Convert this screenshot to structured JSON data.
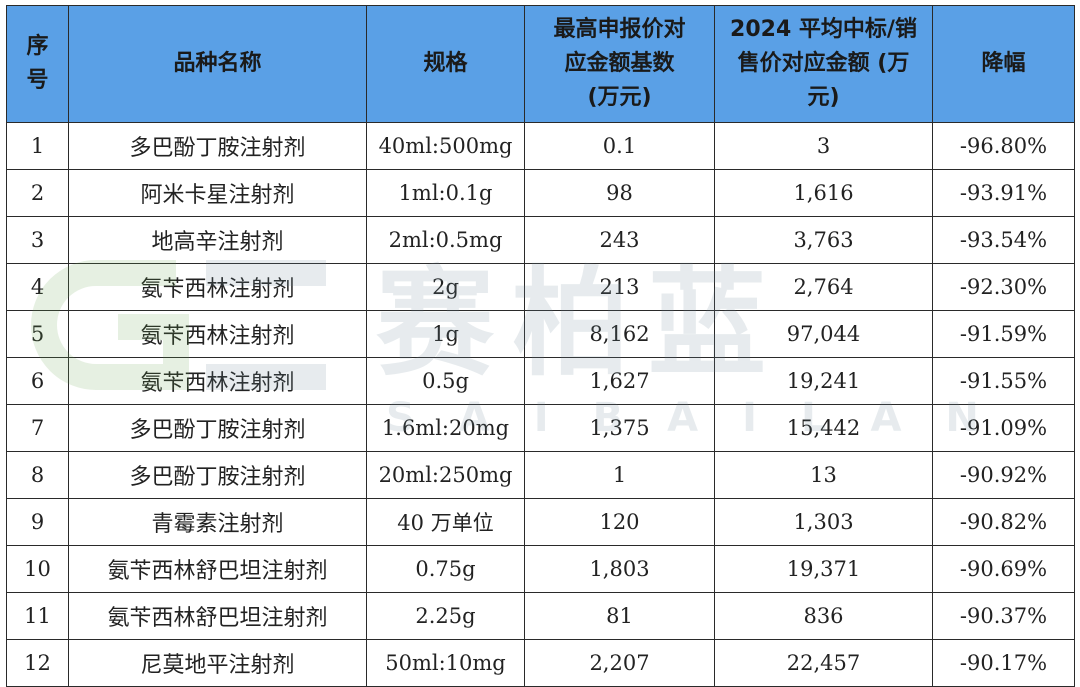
{
  "table": {
    "headers": [
      "序\n号",
      "品种名称",
      "规格",
      "最高申报价对\n应金额基数\n(万元)",
      "2024 平均中标/销\n售价对应金额 (万\n元)",
      "降幅"
    ],
    "rows": [
      [
        "1",
        "多巴酚丁胺注射剂",
        "40ml:500mg",
        "0.1",
        "3",
        "-96.80%"
      ],
      [
        "2",
        "阿米卡星注射剂",
        "1ml:0.1g",
        "98",
        "1,616",
        "-93.91%"
      ],
      [
        "3",
        "地高辛注射剂",
        "2ml:0.5mg",
        "243",
        "3,763",
        "-93.54%"
      ],
      [
        "4",
        "氨苄西林注射剂",
        "2g",
        "213",
        "2,764",
        "-92.30%"
      ],
      [
        "5",
        "氨苄西林注射剂",
        "1g",
        "8,162",
        "97,044",
        "-91.59%"
      ],
      [
        "6",
        "氨苄西林注射剂",
        "0.5g",
        "1,627",
        "19,241",
        "-91.55%"
      ],
      [
        "7",
        "多巴酚丁胺注射剂",
        "1.6ml:20mg",
        "1,375",
        "15,442",
        "-91.09%"
      ],
      [
        "8",
        "多巴酚丁胺注射剂",
        "20ml:250mg",
        "1",
        "13",
        "-90.92%"
      ],
      [
        "9",
        "青霉素注射剂",
        "40 万单位",
        "120",
        "1,303",
        "-90.82%"
      ],
      [
        "10",
        "氨苄西林舒巴坦注射剂",
        "0.75g",
        "1,803",
        "19,371",
        "-90.69%"
      ],
      [
        "11",
        "氨苄西林舒巴坦注射剂",
        "2.25g",
        "81",
        "836",
        "-90.37%"
      ],
      [
        "12",
        "尼莫地平注射剂",
        "50ml:10mg",
        "2,207",
        "22,457",
        "-90.17%"
      ]
    ]
  },
  "watermark": {
    "name_cn": "赛柏蓝",
    "name_en": "SAIBAILAN"
  },
  "colors": {
    "header_bg": "#5aa0e6",
    "border": "#2a2a2a",
    "watermark": "#6e8a9a"
  }
}
